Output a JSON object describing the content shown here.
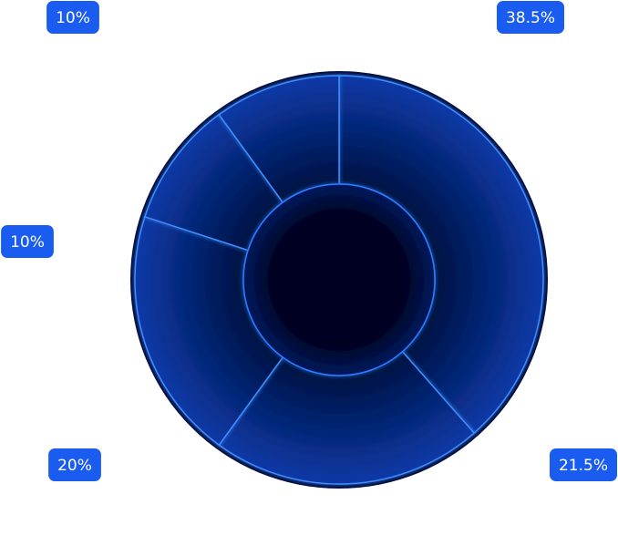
{
  "chart_data": {
    "type": "pie",
    "donut": true,
    "values": [
      38.5,
      21.5,
      20,
      10,
      10
    ],
    "value_labels": [
      "38.5%",
      "21.5%",
      "20%",
      "10%",
      "10%"
    ],
    "color": "#0a2f96"
  }
}
